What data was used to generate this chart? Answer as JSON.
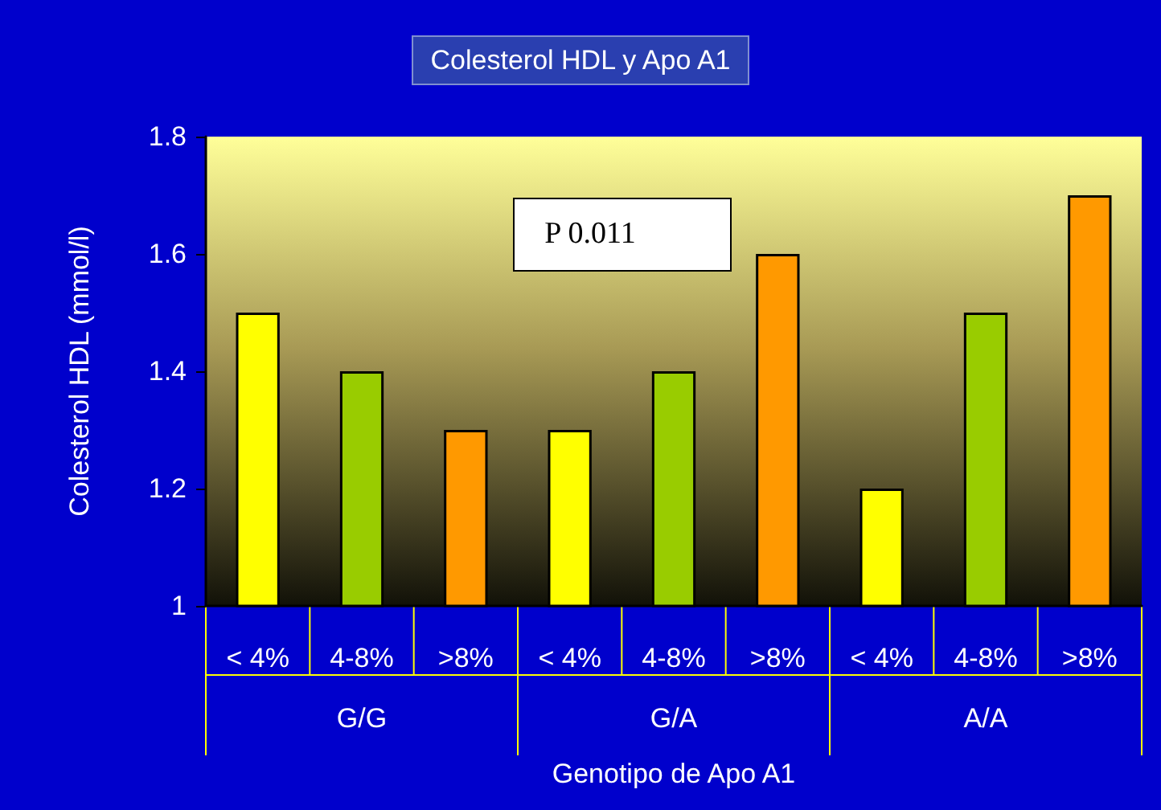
{
  "chart_data": {
    "type": "bar",
    "title": "Colesterol HDL y Apo A1",
    "xlabel": "Genotipo de Apo A1",
    "ylabel": "Colesterol HDL (mmol/l)",
    "categories": [
      "< 4%",
      "4-8%",
      ">8%",
      "< 4%",
      "4-8%",
      ">8%",
      "< 4%",
      "4-8%",
      ">8%"
    ],
    "values": [
      1.5,
      1.4,
      1.3,
      1.3,
      1.4,
      1.6,
      1.2,
      1.5,
      1.7
    ],
    "colors": [
      "#ffff00",
      "#99cc00",
      "#ff9900",
      "#ffff00",
      "#99cc00",
      "#ff9900",
      "#ffff00",
      "#99cc00",
      "#ff9900"
    ],
    "ylim": [
      1,
      1.8
    ],
    "yticks": [
      1,
      1.2,
      1.4,
      1.6,
      1.8
    ],
    "annotations": [
      "P 0.011",
      "G/G",
      "G/A",
      "A/A"
    ],
    "grid": false
  }
}
